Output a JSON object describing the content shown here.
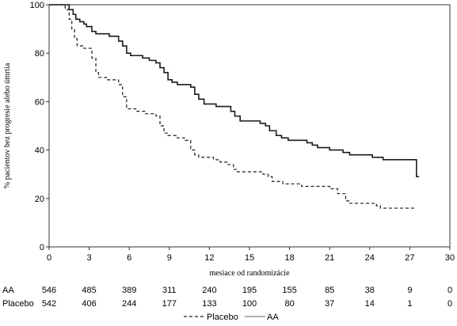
{
  "chart_data": {
    "type": "line",
    "title": "",
    "xlabel": "mesiace od randomizácie",
    "ylabel": "% pacientov bez progresie alebo úmrtia",
    "xlim": [
      0,
      30
    ],
    "ylim": [
      0,
      100
    ],
    "x_ticks": [
      0,
      3,
      6,
      9,
      12,
      15,
      18,
      21,
      24,
      27,
      30
    ],
    "y_ticks": [
      0,
      20,
      40,
      60,
      80,
      100
    ],
    "grid": false,
    "legend_position": "bottom-center",
    "series": [
      {
        "name": "AA",
        "line_style": "solid",
        "color": "#1a1a1a",
        "x": [
          0,
          0.2,
          1.5,
          1.8,
          2.0,
          2.3,
          2.6,
          2.8,
          3.2,
          3.5,
          3.8,
          4.5,
          5.2,
          5.5,
          5.8,
          6.1,
          6.5,
          7.0,
          7.5,
          8.0,
          8.3,
          8.6,
          8.9,
          9.2,
          9.6,
          10.2,
          10.6,
          10.9,
          11.2,
          11.6,
          12.5,
          13.2,
          13.6,
          13.9,
          14.3,
          15.0,
          15.8,
          16.2,
          16.5,
          17.0,
          17.4,
          17.9,
          18.5,
          19.0,
          19.3,
          19.7,
          20.1,
          21.0,
          21.6,
          22.0,
          22.5,
          23.5,
          24.2,
          24.5,
          25.0,
          26.5,
          27.3,
          27.5,
          27.7
        ],
        "y": [
          100,
          100,
          98,
          96,
          94,
          93,
          92,
          91,
          89,
          88,
          88,
          87,
          85,
          83,
          80,
          79,
          79,
          78,
          77,
          76,
          74,
          72,
          69,
          68,
          67,
          67,
          66,
          63,
          61,
          59,
          58,
          58,
          56,
          54,
          52,
          52,
          51,
          50,
          48,
          46,
          45,
          44,
          44,
          44,
          43,
          42,
          41,
          40,
          40,
          39,
          38,
          38,
          37,
          37,
          36,
          36,
          36,
          29,
          29
        ]
      },
      {
        "name": "Placebo",
        "line_style": "dashed",
        "color": "#1a1a1a",
        "x": [
          0,
          0.3,
          1.2,
          1.5,
          1.7,
          1.9,
          2.1,
          2.6,
          3.2,
          3.5,
          3.7,
          4.3,
          5.2,
          5.5,
          5.8,
          6.5,
          7.2,
          8.0,
          8.3,
          8.6,
          8.9,
          9.6,
          10.2,
          10.6,
          10.9,
          11.2,
          11.5,
          12.3,
          12.8,
          13.3,
          13.8,
          14.0,
          14.4,
          15.0,
          16.0,
          16.4,
          16.7,
          17.0,
          17.5,
          18.5,
          18.9,
          19.2,
          19.7,
          20.3,
          21.0,
          21.6,
          22.2,
          22.5,
          23.5,
          24.5,
          24.8,
          25.2,
          26.0,
          27.5
        ],
        "y": [
          100,
          100,
          98,
          94,
          90,
          86,
          83,
          82,
          78,
          72,
          70,
          69,
          67,
          62,
          57,
          56,
          55,
          54,
          50,
          47,
          46,
          45,
          44,
          40,
          38,
          37,
          37,
          36,
          35,
          34,
          32,
          31,
          31,
          31,
          30,
          29,
          27,
          27,
          26,
          26,
          25,
          25,
          25,
          25,
          24,
          22,
          19,
          18,
          18,
          17,
          16,
          16,
          16,
          16
        ]
      }
    ],
    "at_risk": {
      "times": [
        0,
        3,
        6,
        9,
        12,
        15,
        18,
        21,
        24,
        27,
        30
      ],
      "rows": [
        {
          "label": "AA",
          "values": [
            "546",
            "485",
            "389",
            "311",
            "240",
            "195",
            "155",
            "85",
            "38",
            "9",
            "0"
          ]
        },
        {
          "label": "Placebo",
          "values": [
            "542",
            "406",
            "244",
            "177",
            "133",
            "100",
            "80",
            "37",
            "14",
            "1",
            "0"
          ]
        }
      ]
    },
    "legend": [
      {
        "label": "Placebo",
        "line_style": "dashed"
      },
      {
        "label": "AA",
        "line_style": "solid"
      }
    ]
  }
}
